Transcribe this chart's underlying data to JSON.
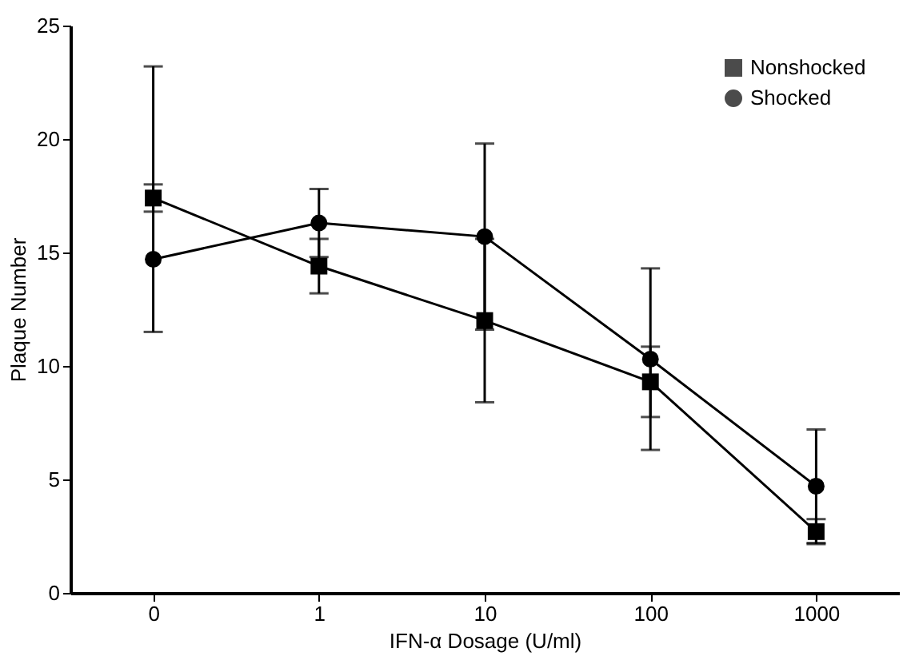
{
  "chart_data": {
    "type": "line",
    "xlabel": "IFN-α Dosage (U/ml)",
    "ylabel": "Plaque Number",
    "categories": [
      "0",
      "1",
      "10",
      "100",
      "1000"
    ],
    "ylim": [
      0,
      25
    ],
    "yticks": [
      0,
      5,
      10,
      15,
      20,
      25
    ],
    "series": [
      {
        "name": "Nonshocked",
        "color": "#000000",
        "marker": "square",
        "values": [
          17.4,
          14.4,
          12.0,
          9.3,
          2.7
        ],
        "errors": [
          0.6,
          1.2,
          3.6,
          1.55,
          0.55
        ]
      },
      {
        "name": "Shocked",
        "color": "#000000",
        "marker": "circle",
        "values": [
          14.7,
          16.3,
          15.7,
          10.3,
          4.7
        ],
        "errors": [
          [
            11.5,
            23.2
          ],
          1.5,
          4.1,
          4.0,
          2.5
        ]
      }
    ],
    "legend": "top right",
    "grid": false
  }
}
